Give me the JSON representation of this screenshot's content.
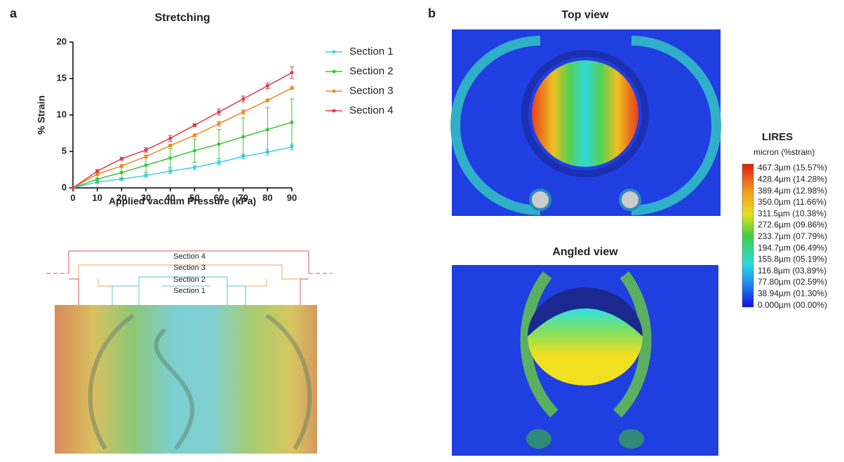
{
  "panels": {
    "a": "a",
    "b": "b"
  },
  "chart_data": {
    "type": "line",
    "title": "Stretching",
    "x_label": "Applied vacuum Pressure (kPa)",
    "y_label": "% Strain",
    "x": [
      0,
      10,
      20,
      30,
      40,
      50,
      60,
      70,
      80,
      90
    ],
    "xlim": [
      0,
      90
    ],
    "xticks": [
      0,
      10,
      20,
      30,
      40,
      50,
      60,
      70,
      80,
      90
    ],
    "ylim": [
      0,
      20
    ],
    "yticks": [
      0,
      5,
      10,
      15,
      20
    ],
    "legend": "right",
    "series": [
      {
        "name": "Section 1",
        "color": "#3fcfe6",
        "values": [
          0,
          0.8,
          1.2,
          1.7,
          2.3,
          2.8,
          3.5,
          4.3,
          4.9,
          5.6
        ],
        "errors": [
          0,
          0.2,
          0.2,
          0.2,
          0.3,
          0.3,
          0.3,
          0.3,
          0.4,
          0.4
        ]
      },
      {
        "name": "Section 2",
        "color": "#3cc43c",
        "values": [
          0,
          1.2,
          2.1,
          3.1,
          4.1,
          5.1,
          6.0,
          7.0,
          8.0,
          9.0
        ],
        "errors": [
          0,
          0.5,
          0.8,
          1.0,
          1.3,
          1.6,
          2.0,
          2.6,
          3.0,
          3.2
        ]
      },
      {
        "name": "Section 3",
        "color": "#f0891e",
        "values": [
          0,
          1.9,
          3.0,
          4.3,
          5.8,
          7.2,
          8.8,
          10.4,
          12.0,
          13.7
        ],
        "errors": [
          0,
          0.2,
          0.2,
          0.2,
          0.2,
          0.2,
          0.3,
          0.3,
          0.2,
          0.2
        ]
      },
      {
        "name": "Section 4",
        "color": "#e03a4a",
        "values": [
          0,
          2.3,
          4.0,
          5.2,
          6.8,
          8.6,
          10.4,
          12.2,
          14.0,
          15.8
        ],
        "errors": [
          0,
          0.2,
          0.2,
          0.3,
          0.4,
          0.2,
          0.4,
          0.4,
          0.4,
          0.8
        ]
      }
    ]
  },
  "diagram": {
    "section_labels": [
      "Section 4",
      "Section 3",
      "Section 2",
      "Section 1"
    ]
  },
  "simulation": {
    "views": [
      "Top view",
      "Angled view"
    ],
    "legend_title": "LIRES",
    "legend_unit": "micron (%strain)",
    "scale_labels": [
      "467.3µm (15.57%)",
      "428.4µm (14.28%)",
      "389.4µm (12.98%)",
      "350.0µm (11.66%)",
      "311.5µm (10.38%)",
      "272.6µm (09.86%)",
      "233.7µm (07.79%)",
      "194.7µm (06.49%)",
      "155.8µm (05.19%)",
      "116.8µm (03.89%)",
      "77.80µm (02.59%)",
      "38.94µm (01.30%)",
      "0.000µm (00.00%)"
    ]
  }
}
